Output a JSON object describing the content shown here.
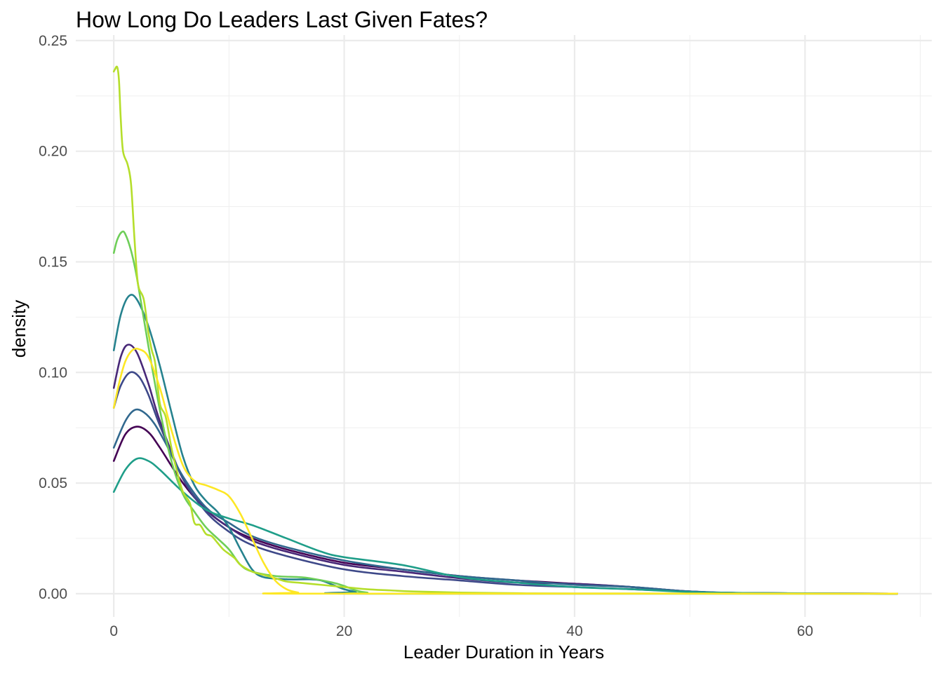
{
  "chart_data": {
    "type": "line",
    "title": "How Long Do Leaders Last Given Fates?",
    "xlabel": "Leader Duration in Years",
    "ylabel": "density",
    "xlim": [
      -3.3,
      71
    ],
    "ylim": [
      -0.0105,
      0.2525
    ],
    "x_ticks": [
      0,
      20,
      40,
      60
    ],
    "x_tick_labels": [
      "0",
      "20",
      "40",
      "60"
    ],
    "y_ticks": [
      0,
      0.05,
      0.1,
      0.15,
      0.2,
      0.25
    ],
    "y_tick_labels": [
      "0.00",
      "0.05",
      "0.10",
      "0.15",
      "0.20",
      "0.25"
    ],
    "grid": true,
    "legend": "none",
    "series": [
      {
        "color": "#440154",
        "points": [
          [
            0,
            0.06
          ],
          [
            1,
            0.072
          ],
          [
            2,
            0.0755
          ],
          [
            3,
            0.073
          ],
          [
            4,
            0.066
          ],
          [
            6,
            0.05
          ],
          [
            8,
            0.038
          ],
          [
            10,
            0.03
          ],
          [
            12,
            0.025
          ],
          [
            15,
            0.02
          ],
          [
            20,
            0.014
          ],
          [
            25,
            0.011
          ],
          [
            30,
            0.008
          ],
          [
            35,
            0.006
          ],
          [
            40,
            0.0045
          ],
          [
            45,
            0.003
          ],
          [
            50,
            0.001
          ],
          [
            55,
            0.0003
          ],
          [
            68,
            0
          ]
        ]
      },
      {
        "color": "#482878",
        "points": [
          [
            0,
            0.093
          ],
          [
            0.6,
            0.107
          ],
          [
            1.2,
            0.1125
          ],
          [
            2,
            0.109
          ],
          [
            3,
            0.095
          ],
          [
            4,
            0.078
          ],
          [
            6,
            0.052
          ],
          [
            8,
            0.038
          ],
          [
            10,
            0.03
          ],
          [
            12,
            0.024
          ],
          [
            15,
            0.019
          ],
          [
            20,
            0.013
          ],
          [
            25,
            0.01
          ],
          [
            30,
            0.007
          ],
          [
            35,
            0.005
          ],
          [
            40,
            0.0045
          ],
          [
            45,
            0.003
          ],
          [
            50,
            0.001
          ],
          [
            55,
            0.0003
          ],
          [
            68,
            0
          ]
        ]
      },
      {
        "color": "#3e4989",
        "points": [
          [
            0,
            0.084
          ],
          [
            0.6,
            0.094
          ],
          [
            1.4,
            0.1
          ],
          [
            2.2,
            0.098
          ],
          [
            3,
            0.09
          ],
          [
            4,
            0.076
          ],
          [
            6,
            0.052
          ],
          [
            8,
            0.037
          ],
          [
            10,
            0.028
          ],
          [
            12,
            0.022
          ],
          [
            15,
            0.017
          ],
          [
            20,
            0.011
          ],
          [
            25,
            0.008
          ],
          [
            30,
            0.006
          ],
          [
            35,
            0.004
          ],
          [
            40,
            0.003
          ],
          [
            45,
            0.002
          ],
          [
            50,
            0.001
          ],
          [
            55,
            0.0003
          ],
          [
            68,
            0
          ]
        ]
      },
      {
        "color": "#31688e",
        "points": [
          [
            0,
            0.066
          ],
          [
            1,
            0.078
          ],
          [
            1.8,
            0.083
          ],
          [
            2.6,
            0.082
          ],
          [
            3.5,
            0.077
          ],
          [
            4.5,
            0.068
          ],
          [
            6,
            0.053
          ],
          [
            8,
            0.039
          ],
          [
            10,
            0.032
          ],
          [
            12,
            0.026
          ],
          [
            15,
            0.021
          ],
          [
            20,
            0.015
          ],
          [
            25,
            0.011
          ],
          [
            30,
            0.008
          ],
          [
            35,
            0.006
          ],
          [
            40,
            0.004
          ],
          [
            45,
            0.003
          ],
          [
            50,
            0.001
          ],
          [
            55,
            0.0003
          ],
          [
            68,
            0
          ]
        ]
      },
      {
        "color": "#26828e",
        "points": [
          [
            0,
            0.11
          ],
          [
            0.6,
            0.126
          ],
          [
            1.3,
            0.1345
          ],
          [
            2,
            0.133
          ],
          [
            3,
            0.121
          ],
          [
            4,
            0.103
          ],
          [
            5,
            0.082
          ],
          [
            6,
            0.062
          ],
          [
            7,
            0.049
          ],
          [
            8,
            0.042
          ],
          [
            9,
            0.037
          ],
          [
            10,
            0.03
          ],
          [
            11,
            0.02
          ],
          [
            12,
            0.011
          ],
          [
            13,
            0.0075
          ],
          [
            15,
            0.0065
          ],
          [
            17,
            0.0065
          ],
          [
            18,
            0.006
          ],
          [
            19,
            0.004
          ],
          [
            20,
            0.002
          ],
          [
            21,
            0.0008
          ],
          [
            22,
            0
          ],
          [
            68,
            0
          ]
        ]
      },
      {
        "color": "#1f9e89",
        "points": [
          [
            0,
            0.046
          ],
          [
            1,
            0.056
          ],
          [
            2,
            0.061
          ],
          [
            3,
            0.06
          ],
          [
            4,
            0.056
          ],
          [
            6,
            0.046
          ],
          [
            8,
            0.038
          ],
          [
            10,
            0.034
          ],
          [
            12,
            0.031
          ],
          [
            15,
            0.025
          ],
          [
            18,
            0.019
          ],
          [
            20,
            0.0165
          ],
          [
            25,
            0.013
          ],
          [
            30,
            0.0075
          ],
          [
            35,
            0.005
          ],
          [
            40,
            0.003
          ],
          [
            45,
            0.002
          ],
          [
            50,
            0.0008
          ],
          [
            55,
            0.0003
          ],
          [
            68,
            0
          ]
        ]
      },
      {
        "color": "#6ece58",
        "points": [
          [
            0,
            0.154
          ],
          [
            0.3,
            0.16
          ],
          [
            0.7,
            0.1635
          ],
          [
            1,
            0.1625
          ],
          [
            1.5,
            0.155
          ],
          [
            2,
            0.143
          ],
          [
            3,
            0.112
          ],
          [
            4,
            0.083
          ],
          [
            5,
            0.06
          ],
          [
            6,
            0.045
          ],
          [
            7,
            0.037
          ],
          [
            8,
            0.03
          ],
          [
            9,
            0.025
          ],
          [
            10,
            0.02
          ],
          [
            11,
            0.013
          ],
          [
            12,
            0.01
          ],
          [
            14,
            0.008
          ],
          [
            16,
            0.0075
          ],
          [
            17,
            0.007
          ],
          [
            19,
            0.005
          ],
          [
            20,
            0.0035
          ],
          [
            21,
            0.0015
          ],
          [
            22,
            0.0005
          ],
          [
            24,
            0
          ],
          [
            68,
            0
          ]
        ]
      },
      {
        "color": "#b5de2b",
        "points": [
          [
            0,
            0.236
          ],
          [
            0.1,
            0.237
          ],
          [
            0.3,
            0.238
          ],
          [
            0.45,
            0.232
          ],
          [
            0.6,
            0.215
          ],
          [
            0.8,
            0.2
          ],
          [
            1.2,
            0.194
          ],
          [
            1.5,
            0.185
          ],
          [
            1.8,
            0.16
          ],
          [
            2.1,
            0.14
          ],
          [
            2.6,
            0.133
          ],
          [
            3,
            0.118
          ],
          [
            3.3,
            0.11
          ],
          [
            3.6,
            0.104
          ],
          [
            4,
            0.086
          ],
          [
            4.5,
            0.08
          ],
          [
            5,
            0.066
          ],
          [
            5.5,
            0.055
          ],
          [
            6,
            0.046
          ],
          [
            6.6,
            0.041
          ],
          [
            7,
            0.032
          ],
          [
            7.5,
            0.031
          ],
          [
            8,
            0.027
          ],
          [
            8.5,
            0.026
          ],
          [
            9,
            0.023
          ],
          [
            9.5,
            0.02
          ],
          [
            10,
            0.018
          ],
          [
            10.5,
            0.016
          ],
          [
            11,
            0.013
          ],
          [
            12,
            0.01
          ],
          [
            13,
            0.0085
          ],
          [
            14,
            0.007
          ],
          [
            15,
            0.0055
          ],
          [
            16,
            0.005
          ],
          [
            17,
            0.0045
          ],
          [
            18,
            0.004
          ],
          [
            19,
            0.0035
          ],
          [
            20,
            0.003
          ],
          [
            22,
            0.002
          ],
          [
            24,
            0.0015
          ],
          [
            26,
            0.001
          ],
          [
            30,
            0.0005
          ],
          [
            35,
            0.0002
          ],
          [
            40,
            0.0001
          ],
          [
            68,
            0
          ]
        ]
      },
      {
        "color": "#fde725",
        "points": [
          [
            0,
            0.084
          ],
          [
            0.5,
            0.096
          ],
          [
            1,
            0.105
          ],
          [
            1.6,
            0.11
          ],
          [
            2.2,
            0.1105
          ],
          [
            3,
            0.107
          ],
          [
            4,
            0.093
          ],
          [
            5,
            0.074
          ],
          [
            6,
            0.058
          ],
          [
            7,
            0.051
          ],
          [
            8,
            0.049
          ],
          [
            9,
            0.047
          ],
          [
            10,
            0.044
          ],
          [
            11,
            0.036
          ],
          [
            12,
            0.025
          ],
          [
            13,
            0.014
          ],
          [
            14,
            0.006
          ],
          [
            15,
            0.002
          ],
          [
            16,
            0.0005
          ],
          [
            17,
            0
          ],
          [
            68,
            0
          ]
        ]
      }
    ]
  }
}
